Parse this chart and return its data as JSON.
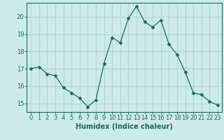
{
  "x": [
    0,
    1,
    2,
    3,
    4,
    5,
    6,
    7,
    8,
    9,
    10,
    11,
    12,
    13,
    14,
    15,
    16,
    17,
    18,
    19,
    20,
    21,
    22,
    23
  ],
  "y": [
    17.0,
    17.1,
    16.7,
    16.6,
    15.9,
    15.6,
    15.3,
    14.8,
    15.2,
    17.3,
    18.8,
    18.5,
    19.9,
    20.6,
    19.7,
    19.4,
    19.8,
    18.4,
    17.8,
    16.8,
    15.6,
    15.5,
    15.1,
    14.9
  ],
  "line_color": "#1a6b5e",
  "marker": "D",
  "marker_size": 2,
  "bg_color": "#cce9ec",
  "grid_color": "#aacdd2",
  "xlabel": "Humidex (Indice chaleur)",
  "xlim": [
    -0.5,
    23.5
  ],
  "ylim": [
    14.5,
    20.8
  ],
  "yticks": [
    15,
    16,
    17,
    18,
    19,
    20
  ],
  "xticks": [
    0,
    1,
    2,
    3,
    4,
    5,
    6,
    7,
    8,
    9,
    10,
    11,
    12,
    13,
    14,
    15,
    16,
    17,
    18,
    19,
    20,
    21,
    22,
    23
  ],
  "xlabel_fontsize": 7,
  "tick_fontsize": 6
}
